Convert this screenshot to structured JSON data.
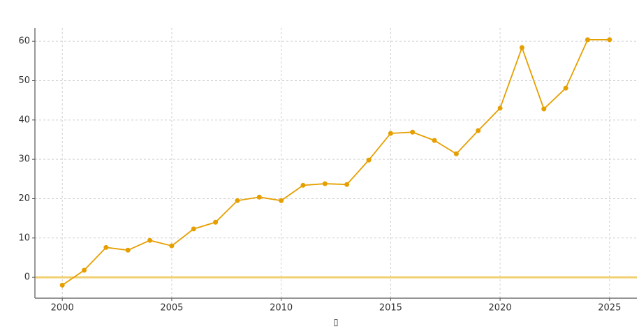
{
  "chart_data": {
    "type": "line",
    "x": [
      2000,
      2001,
      2002,
      2003,
      2004,
      2005,
      2006,
      2007,
      2008,
      2009,
      2010,
      2011,
      2012,
      2013,
      2014,
      2015,
      2016,
      2017,
      2018,
      2019,
      2020,
      2021,
      2022,
      2023,
      2024,
      2025
    ],
    "values": [
      -2,
      1.8,
      7.6,
      6.9,
      9.4,
      8,
      12.3,
      14,
      19.5,
      20.4,
      19.5,
      23.4,
      23.8,
      23.6,
      29.8,
      36.6,
      36.9,
      34.8,
      31.4,
      37.3,
      43,
      58.4,
      42.8,
      48.1,
      60.4,
      60.4
    ],
    "color": "#e69f00",
    "xlabel": "▯",
    "xlim": [
      1998.75,
      2026.25
    ],
    "ylim": [
      -5.3,
      63.4
    ],
    "xticks": [
      2000,
      2005,
      2010,
      2015,
      2020,
      2025
    ],
    "yticks": [
      0,
      10,
      20,
      30,
      40,
      50,
      60
    ],
    "hline": {
      "value": 0,
      "color": "#f0d070"
    },
    "grid": true
  }
}
